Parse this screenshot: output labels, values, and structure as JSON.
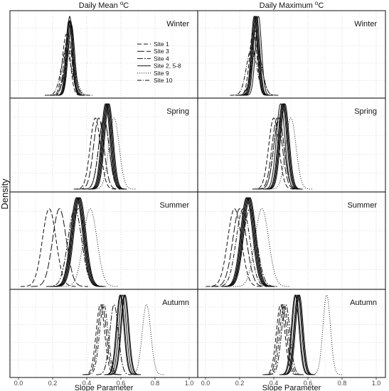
{
  "chart_data": {
    "type": "line",
    "ylabel": "Density",
    "xlabel": "Slope Parameter",
    "xlim": [
      0.0,
      1.0
    ],
    "x_ticks": [
      "0.0",
      "0.2",
      "0.4",
      "0.6",
      "0.8",
      "1.0"
    ],
    "grid": true,
    "legend_placement": "top-center of Daily Mean Winter panel",
    "columns": [
      {
        "key": "mean",
        "title_main": "Daily Mean ",
        "title_sup": "o",
        "title_unit": "C"
      },
      {
        "key": "max",
        "title_main": "Daily Maximum ",
        "title_sup": "o",
        "title_unit": "C"
      }
    ],
    "seasons": [
      "Winter",
      "Spring",
      "Summer",
      "Autumn"
    ],
    "legend": [
      {
        "name": "Site 1",
        "dash": "6,3"
      },
      {
        "name": "Site 3",
        "dash": "10,3"
      },
      {
        "name": "Site 4",
        "dash": "8,2,2,2"
      },
      {
        "name": "Site 2, 5-8",
        "dash": ""
      },
      {
        "name": "Site 9",
        "dash": "1,2"
      },
      {
        "name": "Site 10",
        "dash": "6,2,1,2"
      }
    ],
    "series": {
      "mean": {
        "Winter": [
          {
            "site": "Site 1",
            "mu": 0.28,
            "sd": 0.022
          },
          {
            "site": "Site 3",
            "mu": 0.29,
            "sd": 0.022
          },
          {
            "site": "Site 4",
            "mu": 0.3,
            "sd": 0.028
          },
          {
            "site": "Site 2",
            "mu": 0.3,
            "sd": 0.018
          },
          {
            "site": "Site 5",
            "mu": 0.295,
            "sd": 0.018
          },
          {
            "site": "Site 6",
            "mu": 0.305,
            "sd": 0.018
          },
          {
            "site": "Site 7",
            "mu": 0.3,
            "sd": 0.017
          },
          {
            "site": "Site 8",
            "mu": 0.31,
            "sd": 0.019
          },
          {
            "site": "Site 9",
            "mu": 0.3,
            "sd": 0.032
          },
          {
            "site": "Site 10",
            "mu": 0.28,
            "sd": 0.03
          }
        ],
        "Spring": [
          {
            "site": "Site 1",
            "mu": 0.45,
            "sd": 0.03
          },
          {
            "site": "Site 3",
            "mu": 0.47,
            "sd": 0.03
          },
          {
            "site": "Site 4",
            "mu": 0.5,
            "sd": 0.03
          },
          {
            "site": "Site 2",
            "mu": 0.52,
            "sd": 0.025
          },
          {
            "site": "Site 5",
            "mu": 0.515,
            "sd": 0.025
          },
          {
            "site": "Site 6",
            "mu": 0.525,
            "sd": 0.025
          },
          {
            "site": "Site 7",
            "mu": 0.53,
            "sd": 0.025
          },
          {
            "site": "Site 8",
            "mu": 0.51,
            "sd": 0.025
          },
          {
            "site": "Site 9",
            "mu": 0.56,
            "sd": 0.03
          },
          {
            "site": "Site 10",
            "mu": 0.5,
            "sd": 0.03
          }
        ],
        "Summer": [
          {
            "site": "Site 1",
            "mu": 0.18,
            "sd": 0.04
          },
          {
            "site": "Site 3",
            "mu": 0.24,
            "sd": 0.04
          },
          {
            "site": "Site 4",
            "mu": 0.33,
            "sd": 0.04
          },
          {
            "site": "Site 2",
            "mu": 0.345,
            "sd": 0.035
          },
          {
            "site": "Site 5",
            "mu": 0.35,
            "sd": 0.035
          },
          {
            "site": "Site 6",
            "mu": 0.34,
            "sd": 0.035
          },
          {
            "site": "Site 7",
            "mu": 0.355,
            "sd": 0.035
          },
          {
            "site": "Site 8",
            "mu": 0.36,
            "sd": 0.035
          },
          {
            "site": "Site 9",
            "mu": 0.42,
            "sd": 0.04
          },
          {
            "site": "Site 10",
            "mu": 0.35,
            "sd": 0.04
          }
        ],
        "Autumn": [
          {
            "site": "Site 1",
            "mu": 0.48,
            "sd": 0.025
          },
          {
            "site": "Site 3",
            "mu": 0.49,
            "sd": 0.025
          },
          {
            "site": "Site 4",
            "mu": 0.56,
            "sd": 0.025
          },
          {
            "site": "Site 2",
            "mu": 0.6,
            "sd": 0.022
          },
          {
            "site": "Site 5",
            "mu": 0.61,
            "sd": 0.022
          },
          {
            "site": "Site 6",
            "mu": 0.62,
            "sd": 0.022
          },
          {
            "site": "Site 7",
            "mu": 0.595,
            "sd": 0.022
          },
          {
            "site": "Site 8",
            "mu": 0.625,
            "sd": 0.022
          },
          {
            "site": "Site 9",
            "mu": 0.75,
            "sd": 0.025
          },
          {
            "site": "Site 10",
            "mu": 0.5,
            "sd": 0.025
          }
        ]
      },
      "max": {
        "Winter": [
          {
            "site": "Site 1",
            "mu": 0.28,
            "sd": 0.022
          },
          {
            "site": "Site 3",
            "mu": 0.29,
            "sd": 0.022
          },
          {
            "site": "Site 4",
            "mu": 0.3,
            "sd": 0.03
          },
          {
            "site": "Site 2",
            "mu": 0.29,
            "sd": 0.018
          },
          {
            "site": "Site 5",
            "mu": 0.295,
            "sd": 0.018
          },
          {
            "site": "Site 6",
            "mu": 0.3,
            "sd": 0.018
          },
          {
            "site": "Site 7",
            "mu": 0.31,
            "sd": 0.018
          },
          {
            "site": "Site 8",
            "mu": 0.285,
            "sd": 0.018
          },
          {
            "site": "Site 9",
            "mu": 0.3,
            "sd": 0.03
          },
          {
            "site": "Site 10",
            "mu": 0.27,
            "sd": 0.03
          }
        ],
        "Spring": [
          {
            "site": "Site 1",
            "mu": 0.4,
            "sd": 0.03
          },
          {
            "site": "Site 3",
            "mu": 0.42,
            "sd": 0.03
          },
          {
            "site": "Site 4",
            "mu": 0.43,
            "sd": 0.03
          },
          {
            "site": "Site 2",
            "mu": 0.45,
            "sd": 0.025
          },
          {
            "site": "Site 5",
            "mu": 0.455,
            "sd": 0.025
          },
          {
            "site": "Site 6",
            "mu": 0.46,
            "sd": 0.025
          },
          {
            "site": "Site 7",
            "mu": 0.44,
            "sd": 0.025
          },
          {
            "site": "Site 8",
            "mu": 0.465,
            "sd": 0.025
          },
          {
            "site": "Site 9",
            "mu": 0.5,
            "sd": 0.03
          },
          {
            "site": "Site 10",
            "mu": 0.43,
            "sd": 0.03
          }
        ],
        "Summer": [
          {
            "site": "Site 1",
            "mu": 0.17,
            "sd": 0.04
          },
          {
            "site": "Site 3",
            "mu": 0.2,
            "sd": 0.04
          },
          {
            "site": "Site 4",
            "mu": 0.26,
            "sd": 0.04
          },
          {
            "site": "Site 2",
            "mu": 0.25,
            "sd": 0.035
          },
          {
            "site": "Site 5",
            "mu": 0.255,
            "sd": 0.035
          },
          {
            "site": "Site 6",
            "mu": 0.245,
            "sd": 0.035
          },
          {
            "site": "Site 7",
            "mu": 0.26,
            "sd": 0.035
          },
          {
            "site": "Site 8",
            "mu": 0.24,
            "sd": 0.035
          },
          {
            "site": "Site 9",
            "mu": 0.33,
            "sd": 0.04
          },
          {
            "site": "Site 10",
            "mu": 0.22,
            "sd": 0.04
          }
        ],
        "Autumn": [
          {
            "site": "Site 1",
            "mu": 0.44,
            "sd": 0.025
          },
          {
            "site": "Site 3",
            "mu": 0.45,
            "sd": 0.025
          },
          {
            "site": "Site 4",
            "mu": 0.47,
            "sd": 0.025
          },
          {
            "site": "Site 2",
            "mu": 0.53,
            "sd": 0.022
          },
          {
            "site": "Site 5",
            "mu": 0.54,
            "sd": 0.022
          },
          {
            "site": "Site 6",
            "mu": 0.545,
            "sd": 0.022
          },
          {
            "site": "Site 7",
            "mu": 0.525,
            "sd": 0.022
          },
          {
            "site": "Site 8",
            "mu": 0.55,
            "sd": 0.022
          },
          {
            "site": "Site 9",
            "mu": 0.71,
            "sd": 0.022
          },
          {
            "site": "Site 10",
            "mu": 0.46,
            "sd": 0.025
          }
        ]
      }
    }
  }
}
